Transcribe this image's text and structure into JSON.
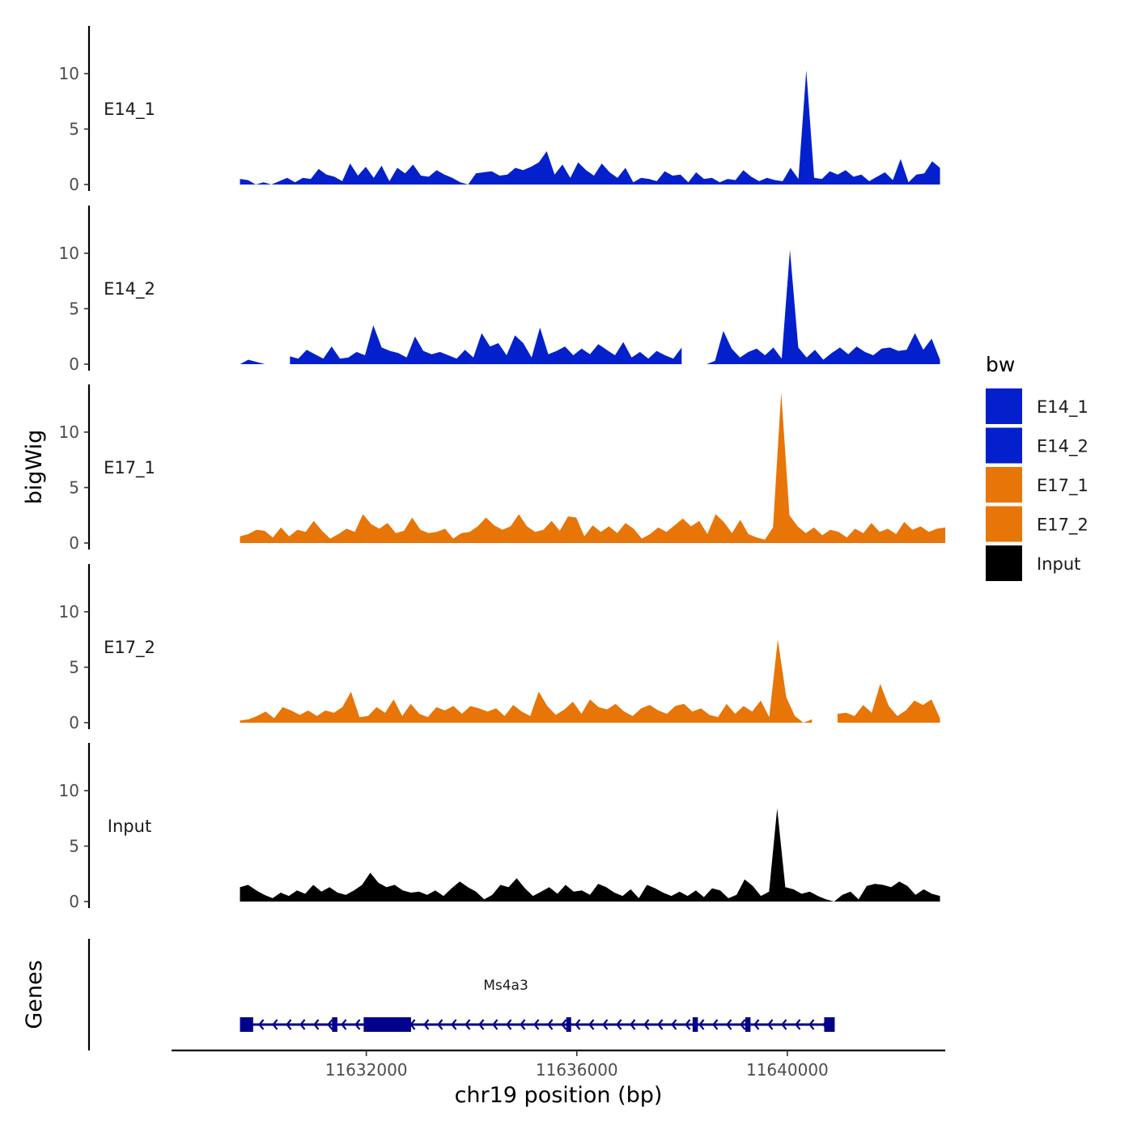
{
  "chart_data": {
    "type": "area",
    "ylabel": "bigWig",
    "xlabel": "chr19 position (bp)",
    "genes_label": "Genes",
    "ylim": [
      0,
      14.3
    ],
    "y_ticks": [
      0,
      5,
      10
    ],
    "xlim": [
      11628300,
      11643000
    ],
    "x_ticks": [
      11632000,
      11636000,
      11640000
    ],
    "x_tick_labels": [
      "11632000",
      "11636000",
      "11640000"
    ],
    "legend": {
      "title": "bw",
      "entries": [
        {
          "label": "E14_1",
          "color": "#0320CC"
        },
        {
          "label": "E14_2",
          "color": "#0320CC"
        },
        {
          "label": "E17_1",
          "color": "#E87508"
        },
        {
          "label": "E17_2",
          "color": "#E87508"
        },
        {
          "label": "Input",
          "color": "#000000"
        }
      ]
    },
    "series": [
      {
        "name": "E14_1",
        "color": "#0320CC",
        "x_start": 11629600,
        "x_end": 11642900,
        "gaps": [],
        "values": [
          0.5,
          0.4,
          0.0,
          0.2,
          0.0,
          0.3,
          0.6,
          0.2,
          0.6,
          0.5,
          1.4,
          0.9,
          0.7,
          0.3,
          1.9,
          0.8,
          1.6,
          0.6,
          1.7,
          0.3,
          1.5,
          1.0,
          1.8,
          0.8,
          0.7,
          1.3,
          0.9,
          0.6,
          0.2,
          0.0,
          1.0,
          1.1,
          1.2,
          0.8,
          0.9,
          1.5,
          1.3,
          1.6,
          2.0,
          3.0,
          0.9,
          1.8,
          0.6,
          2.0,
          1.3,
          0.8,
          1.9,
          1.1,
          0.6,
          1.5,
          0.2,
          0.6,
          0.5,
          0.3,
          1.2,
          0.8,
          0.9,
          0.2,
          1.1,
          0.5,
          0.6,
          0.2,
          0.5,
          0.4,
          1.3,
          0.7,
          0.3,
          0.6,
          0.4,
          0.3,
          1.5,
          0.5,
          10.3,
          0.6,
          0.5,
          1.2,
          0.9,
          1.3,
          0.7,
          0.9,
          0.3,
          0.7,
          1.1,
          0.4,
          2.3,
          0.2,
          0.9,
          1.0,
          2.1,
          1.5
        ]
      },
      {
        "name": "E14_2",
        "color": "#0320CC",
        "x_start": 11629600,
        "x_end": 11642900,
        "gaps": [
          [
            11630200,
            11630400
          ],
          [
            11635200,
            11635300
          ],
          [
            11638100,
            11638400
          ]
        ],
        "values": [
          0.0,
          0.4,
          0.2,
          0.0,
          0.0,
          0.2,
          0.7,
          0.5,
          1.3,
          0.9,
          0.5,
          1.6,
          0.5,
          0.6,
          1.1,
          0.8,
          3.5,
          1.5,
          1.2,
          1.0,
          0.6,
          2.5,
          1.2,
          0.9,
          1.1,
          0.8,
          0.5,
          1.3,
          0.6,
          2.8,
          1.6,
          1.9,
          0.8,
          2.6,
          1.9,
          0.6,
          3.3,
          0.9,
          1.2,
          1.6,
          0.8,
          1.4,
          0.9,
          1.8,
          1.3,
          0.8,
          2.0,
          0.6,
          1.1,
          0.5,
          1.2,
          0.8,
          0.5,
          1.5,
          0.6,
          0.4,
          0.0,
          0.3,
          3.0,
          1.4,
          0.6,
          1.1,
          1.4,
          0.8,
          1.5,
          0.5,
          10.3,
          1.5,
          0.6,
          1.3,
          0.4,
          1.0,
          1.5,
          0.9,
          1.6,
          1.1,
          0.8,
          1.4,
          1.5,
          1.2,
          1.3,
          2.8,
          1.3,
          2.3,
          0.4
        ]
      },
      {
        "name": "E17_1",
        "color": "#E87508",
        "x_start": 11629600,
        "x_end": 11643000,
        "gaps": [],
        "values": [
          0.6,
          0.8,
          1.2,
          1.1,
          0.5,
          1.4,
          0.6,
          1.2,
          1.0,
          2.0,
          1.1,
          0.4,
          0.8,
          1.3,
          1.0,
          2.6,
          1.7,
          1.3,
          1.8,
          0.9,
          1.1,
          2.3,
          1.2,
          0.9,
          1.0,
          1.3,
          0.4,
          0.9,
          1.0,
          1.5,
          2.3,
          1.6,
          1.2,
          1.5,
          2.6,
          1.5,
          1.0,
          1.2,
          2.0,
          1.1,
          2.4,
          2.3,
          0.6,
          1.6,
          1.0,
          1.5,
          0.9,
          1.8,
          1.3,
          0.4,
          0.8,
          1.4,
          1.0,
          1.6,
          2.2,
          1.5,
          2.0,
          0.8,
          2.6,
          1.9,
          0.9,
          2.1,
          0.8,
          0.5,
          0.3,
          1.4,
          13.6,
          2.5,
          1.5,
          0.9,
          1.4,
          0.7,
          1.2,
          1.0,
          0.5,
          1.3,
          0.9,
          1.8,
          1.0,
          1.3,
          0.8,
          1.9,
          1.2,
          1.5,
          1.0,
          1.3,
          1.4
        ]
      },
      {
        "name": "E17_2",
        "color": "#E87508",
        "x_start": 11629600,
        "x_end": 11642900,
        "gaps": [
          [
            11640500,
            11640800
          ]
        ],
        "values": [
          0.2,
          0.3,
          0.6,
          1.0,
          0.4,
          1.4,
          1.1,
          0.7,
          1.1,
          0.6,
          1.1,
          0.9,
          1.4,
          2.8,
          0.5,
          0.6,
          1.4,
          0.9,
          2.1,
          0.6,
          1.7,
          0.8,
          0.5,
          1.4,
          1.1,
          1.5,
          0.8,
          1.5,
          1.3,
          1.0,
          1.3,
          0.6,
          1.6,
          1.0,
          0.6,
          2.8,
          1.5,
          0.7,
          1.2,
          1.9,
          0.8,
          2.1,
          1.4,
          1.2,
          1.7,
          1.0,
          0.6,
          1.3,
          1.6,
          1.1,
          0.8,
          1.5,
          1.7,
          1.0,
          1.3,
          0.7,
          0.5,
          1.7,
          0.8,
          1.5,
          1.0,
          2.0,
          0.5,
          7.5,
          2.3,
          0.6,
          0.0,
          0.3,
          0.6,
          1.2,
          0.8,
          0.9,
          0.6,
          1.6,
          0.9,
          3.5,
          1.5,
          0.6,
          1.1,
          2.0,
          1.6,
          2.1,
          0.4
        ]
      },
      {
        "name": "Input",
        "color": "#000000",
        "x_start": 11629600,
        "x_end": 11642900,
        "gaps": [],
        "values": [
          1.3,
          1.5,
          1.0,
          0.6,
          0.3,
          0.8,
          0.5,
          1.0,
          0.7,
          1.5,
          0.9,
          1.3,
          0.8,
          0.6,
          1.0,
          1.5,
          2.6,
          1.7,
          1.3,
          1.5,
          1.0,
          0.8,
          0.9,
          0.6,
          1.0,
          0.5,
          1.2,
          1.8,
          1.3,
          0.9,
          0.2,
          0.6,
          1.5,
          1.3,
          2.1,
          1.2,
          0.5,
          0.9,
          1.3,
          0.7,
          1.5,
          0.9,
          1.0,
          0.6,
          1.6,
          1.3,
          0.8,
          0.5,
          1.1,
          0.3,
          1.5,
          1.2,
          0.8,
          0.5,
          0.9,
          0.5,
          1.0,
          0.4,
          1.2,
          1.0,
          0.3,
          0.6,
          2.0,
          1.4,
          0.5,
          0.9,
          8.4,
          1.3,
          1.1,
          0.7,
          0.9,
          0.5,
          0.2,
          0.0,
          0.6,
          0.9,
          0.2,
          1.4,
          1.6,
          1.5,
          1.3,
          1.8,
          1.4,
          0.6,
          1.1,
          0.7,
          0.5
        ]
      }
    ],
    "gene": {
      "name": "Ms4a3",
      "color": "#00008B",
      "strand": "-",
      "start": 11629600,
      "end": 11640900,
      "exons": [
        [
          11629600,
          11629850
        ],
        [
          11631350,
          11631450
        ],
        [
          11631950,
          11632850
        ],
        [
          11635800,
          11635850
        ],
        [
          11638200,
          11638300
        ],
        [
          11639200,
          11639300
        ],
        [
          11640700,
          11640900
        ]
      ]
    }
  }
}
